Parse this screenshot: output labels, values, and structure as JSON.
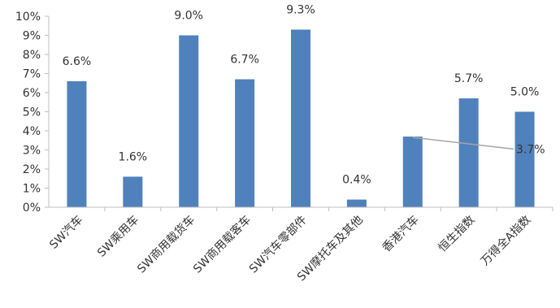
{
  "chart_data": {
    "type": "bar",
    "categories": [
      "SW汽车",
      "SW乘用车",
      "SW商用载货车",
      "SW商用载客车",
      "SW汽车零部件",
      "SW摩托车及其他",
      "香港汽车",
      "恒生指数",
      "万得全A指数"
    ],
    "values": [
      6.6,
      1.6,
      9.0,
      6.7,
      9.3,
      0.4,
      3.7,
      5.7,
      5.0
    ],
    "data_labels": [
      "6.6%",
      "1.6%",
      "9.0%",
      "6.7%",
      "9.3%",
      "0.4%",
      "3.7%",
      "5.7%",
      "5.0%"
    ],
    "y_ticks": [
      "0%",
      "1%",
      "2%",
      "3%",
      "4%",
      "5%",
      "6%",
      "7%",
      "8%",
      "9%",
      "10%"
    ],
    "ylim": [
      0,
      10
    ],
    "grid": false,
    "legend": false,
    "title": "",
    "xlabel": "",
    "ylabel": "",
    "bar_color": "#4F81BD",
    "axis_color": "#BFBFBF",
    "leader_line_color": "#A6A6A6"
  }
}
